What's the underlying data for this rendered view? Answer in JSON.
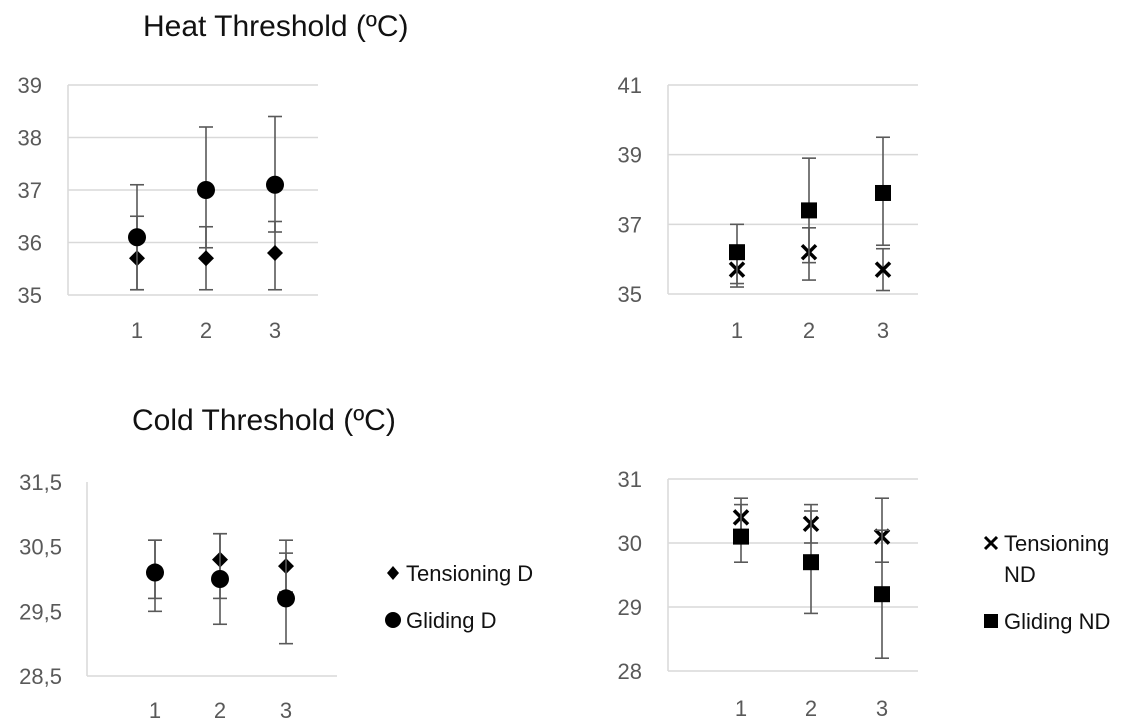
{
  "titles": {
    "heat": "Heat Threshold (ºC)",
    "cold": "Cold Threshold (ºC)"
  },
  "legends": {
    "dominant": [
      {
        "marker": "diamond",
        "label": "Tensioning D"
      },
      {
        "marker": "circle",
        "label": "Gliding D"
      }
    ],
    "nondominant": [
      {
        "marker": "cross",
        "label_lines": [
          "Tensioning",
          "ND"
        ]
      },
      {
        "marker": "square",
        "label_lines": [
          "Gliding ND"
        ]
      }
    ]
  },
  "colors": {
    "marker": "#000000",
    "error_bar": "#595959",
    "grid": "#d9d9d9",
    "axis_text": "#595959"
  },
  "chart_data": [
    {
      "type": "scatter",
      "panel": "heat-dominant",
      "x": [
        1,
        2,
        3
      ],
      "ylim": [
        35,
        39
      ],
      "yticks": [
        "35",
        "36",
        "37",
        "38",
        "39"
      ],
      "xticks": [
        "1",
        "2",
        "3"
      ],
      "grid": true,
      "series": [
        {
          "name": "Tensioning D",
          "marker": "diamond",
          "values": [
            35.7,
            35.7,
            35.8
          ],
          "err_low": [
            35.1,
            35.1,
            35.1
          ],
          "err_high": [
            36.5,
            36.3,
            36.4
          ]
        },
        {
          "name": "Gliding D",
          "marker": "circle",
          "values": [
            36.1,
            37.0,
            37.1
          ],
          "err_low": [
            35.1,
            35.9,
            36.2
          ],
          "err_high": [
            37.1,
            38.2,
            38.4
          ]
        }
      ]
    },
    {
      "type": "scatter",
      "panel": "heat-nondominant",
      "x": [
        1,
        2,
        3
      ],
      "ylim": [
        35,
        41
      ],
      "yticks": [
        "35",
        "37",
        "39",
        "41"
      ],
      "xticks": [
        "1",
        "2",
        "3"
      ],
      "grid": true,
      "series": [
        {
          "name": "Tensioning ND",
          "marker": "cross",
          "values": [
            35.7,
            36.2,
            35.7
          ],
          "err_low": [
            35.2,
            35.4,
            35.1
          ],
          "err_high": [
            36.2,
            36.9,
            36.3
          ]
        },
        {
          "name": "Gliding ND",
          "marker": "square",
          "values": [
            36.2,
            37.4,
            37.9
          ],
          "err_low": [
            35.3,
            35.9,
            36.4
          ],
          "err_high": [
            37.0,
            38.9,
            39.5
          ]
        }
      ]
    },
    {
      "type": "scatter",
      "panel": "cold-dominant",
      "x": [
        1,
        2,
        3
      ],
      "ylim": [
        28.5,
        31.5
      ],
      "yticks": [
        "28,5",
        "29,5",
        "30,5",
        "31,5"
      ],
      "xticks": [
        "1",
        "2",
        "3"
      ],
      "grid": false,
      "series": [
        {
          "name": "Tensioning D",
          "marker": "diamond",
          "values": [
            30.1,
            30.3,
            30.2
          ],
          "err_low": [
            29.5,
            29.7,
            29.8
          ],
          "err_high": [
            30.6,
            30.7,
            30.6
          ]
        },
        {
          "name": "Gliding D",
          "marker": "circle",
          "values": [
            30.1,
            30.0,
            29.7
          ],
          "err_low": [
            29.7,
            29.3,
            29.0
          ],
          "err_high": [
            30.6,
            30.7,
            30.4
          ]
        }
      ]
    },
    {
      "type": "scatter",
      "panel": "cold-nondominant",
      "x": [
        1,
        2,
        3
      ],
      "ylim": [
        28,
        31
      ],
      "yticks": [
        "28",
        "29",
        "30",
        "31"
      ],
      "xticks": [
        "1",
        "2",
        "3"
      ],
      "grid": true,
      "series": [
        {
          "name": "Tensioning ND",
          "marker": "cross",
          "values": [
            30.4,
            30.3,
            30.1
          ],
          "err_low": [
            30.1,
            30.0,
            29.7
          ],
          "err_high": [
            30.7,
            30.6,
            30.7
          ]
        },
        {
          "name": "Gliding ND",
          "marker": "square",
          "values": [
            30.1,
            29.7,
            29.2
          ],
          "err_low": [
            29.7,
            28.9,
            28.2
          ],
          "err_high": [
            30.6,
            30.5,
            30.2
          ]
        }
      ]
    }
  ]
}
